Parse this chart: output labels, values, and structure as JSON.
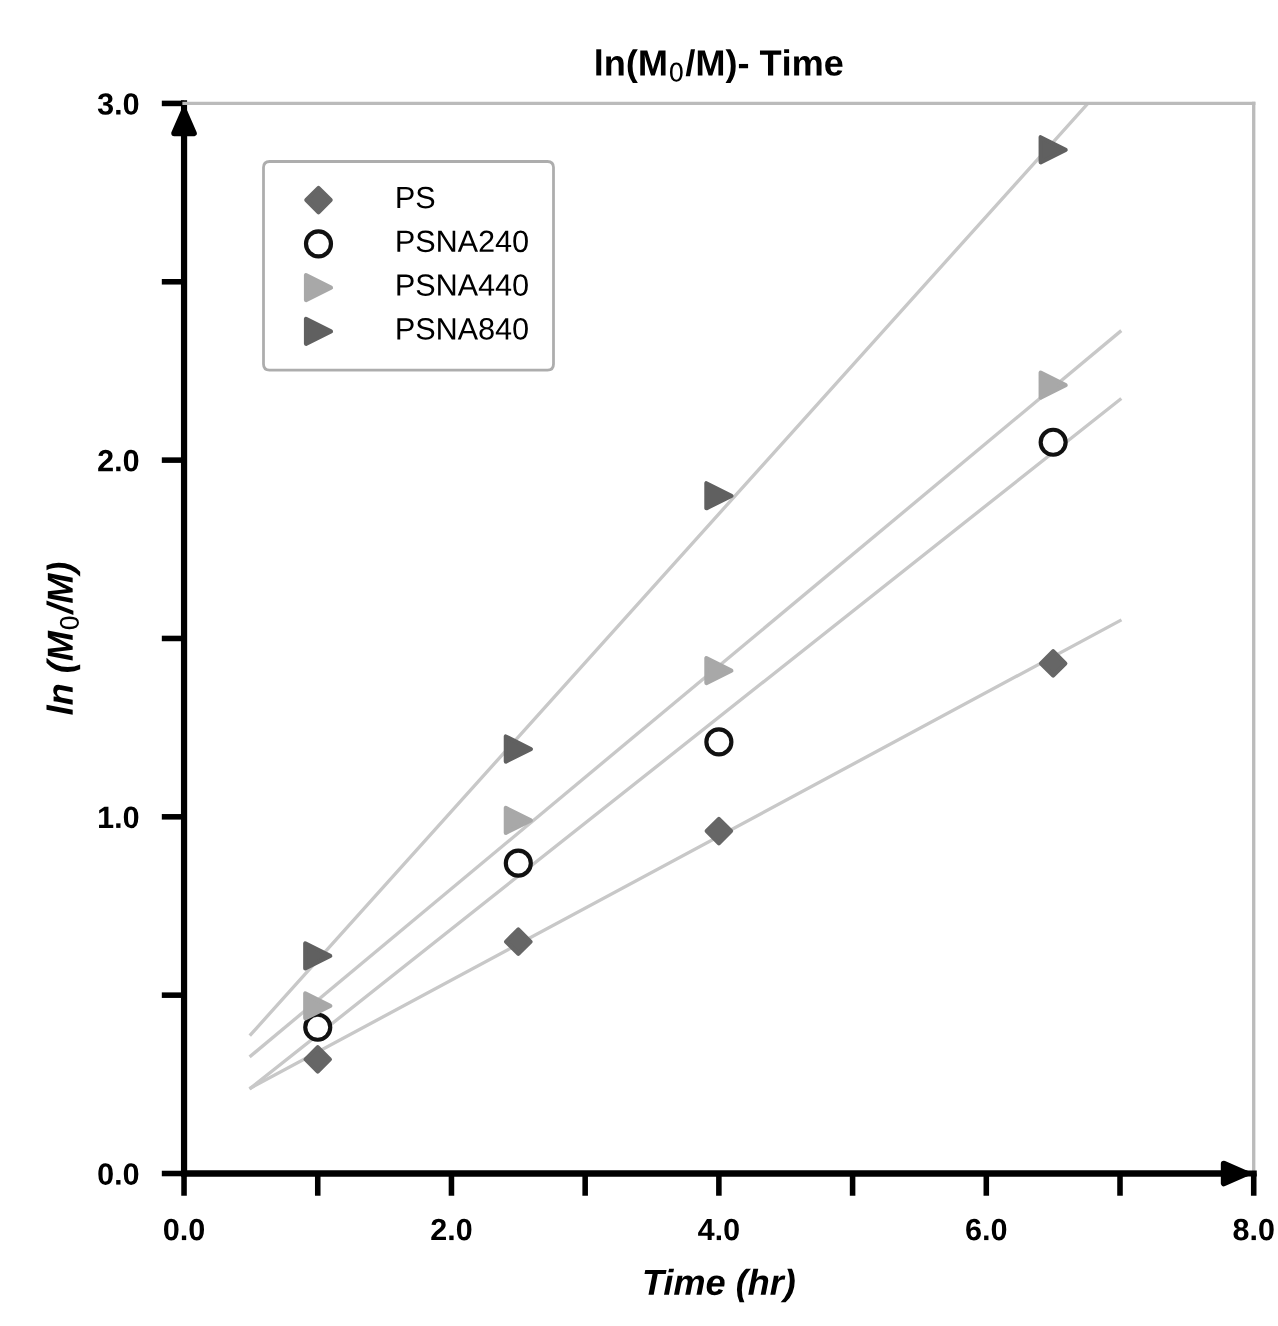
{
  "chart_data": {
    "type": "scatter",
    "title": "ln(M$_{0}$/M)- Time",
    "xlabel": "Time (hr)",
    "ylabel": "ln (M$_{0}$/M)",
    "xlim": [
      0,
      8
    ],
    "xticks": [
      {
        "value": 0,
        "label": "0.0"
      },
      {
        "value": 1,
        "label": null
      },
      {
        "value": 2,
        "label": "2.0"
      },
      {
        "value": 3,
        "label": null
      },
      {
        "value": 4,
        "label": "4.0"
      },
      {
        "value": 5,
        "label": null
      },
      {
        "value": 6,
        "label": "6.0"
      },
      {
        "value": 7,
        "label": null
      },
      {
        "value": 8,
        "label": "8.0"
      }
    ],
    "ylim": [
      0,
      3
    ],
    "yticks": [
      {
        "value": 0,
        "label": "0.0"
      },
      {
        "value": 0.5,
        "label": null
      },
      {
        "value": 1,
        "label": "1.0"
      },
      {
        "value": 1.5,
        "label": null
      },
      {
        "value": 2,
        "label": "2.0"
      },
      {
        "value": 2.5,
        "label": null
      },
      {
        "value": 3,
        "label": "3.0"
      }
    ],
    "grid": false,
    "legend": "top left",
    "x": [
      1,
      2.5,
      4,
      6.5
    ],
    "series": [
      {
        "name": "PS",
        "color": "#666666",
        "marker": "diamond",
        "values": [
          0.32,
          0.65,
          0.96,
          1.43
        ]
      },
      {
        "name": "PSNA240",
        "color": "#111111",
        "marker": "circle",
        "values": [
          0.41,
          0.87,
          1.21,
          2.05
        ]
      },
      {
        "name": "PSNA440",
        "color": "#a8a8a8",
        "marker": "triangle",
        "values": [
          0.47,
          0.99,
          1.41,
          2.21
        ]
      },
      {
        "name": "PSNA840",
        "color": "#606060",
        "marker": "triangle",
        "values": [
          0.61,
          1.19,
          1.9,
          2.87
        ]
      },
      {
        "type": "line",
        "color": "#c8c8c8",
        "x": [
          0.5,
          7
        ],
        "values": [
          0.24,
          1.55
        ]
      },
      {
        "type": "line",
        "color": "#c8c8c8",
        "x": [
          0.5,
          7
        ],
        "values": [
          0.24,
          2.17
        ]
      },
      {
        "type": "line",
        "color": "#c8c8c8",
        "x": [
          0.5,
          7
        ],
        "values": [
          0.33,
          2.36
        ]
      },
      {
        "type": "line",
        "color": "#c8c8c8",
        "x": [
          0.5,
          6.76
        ],
        "values": [
          0.39,
          3.0
        ]
      }
    ]
  }
}
